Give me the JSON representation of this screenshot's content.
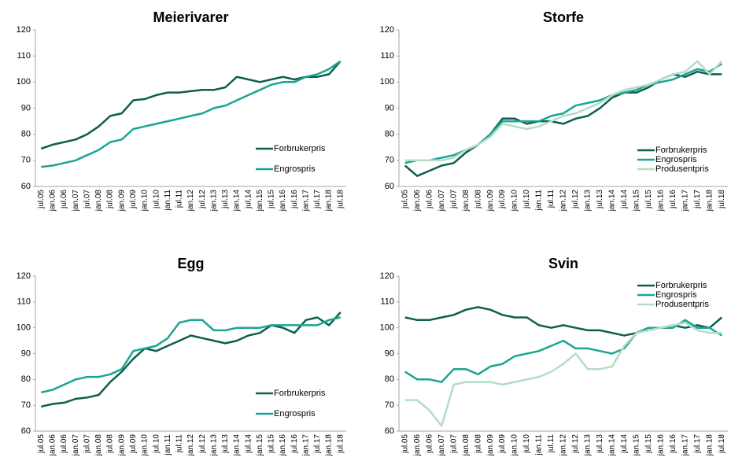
{
  "chart_data": [
    {
      "type": "line",
      "title": "Meierivarer",
      "legend": "lower right",
      "categories": [
        "jul.05",
        "jan.06",
        "jul.06",
        "jan.07",
        "jul.07",
        "jan.08",
        "jul.08",
        "jan.09",
        "jul.09",
        "jan.10",
        "jul.10",
        "jan.11",
        "jul.11",
        "jan.12",
        "jul.12",
        "jan.13",
        "jul.13",
        "jan.14",
        "jul.14",
        "jan.15",
        "jul.15",
        "jan.16",
        "jul.16",
        "jan.17",
        "jul.17",
        "jan.18",
        "jul.18"
      ],
      "ylim": [
        60,
        120
      ],
      "yticks": [
        60,
        70,
        80,
        90,
        100,
        110,
        120
      ],
      "grid": false,
      "series": [
        {
          "name": "Forbrukerpris",
          "color": "#0e5e4e",
          "values": [
            74.5,
            76,
            77,
            78,
            80,
            83,
            87,
            88,
            93,
            93.5,
            95,
            96,
            96,
            96.5,
            97,
            97,
            98,
            102,
            101,
            100,
            101,
            102,
            101,
            102,
            102,
            103,
            108
          ]
        },
        {
          "name": "Engrospris",
          "color": "#1aa593",
          "values": [
            67.5,
            68,
            69,
            70,
            72,
            74,
            77,
            78,
            82,
            83,
            84,
            85,
            86,
            87,
            88,
            90,
            91,
            93,
            95,
            97,
            99,
            100,
            100,
            102,
            103,
            105,
            108
          ]
        }
      ]
    },
    {
      "type": "line",
      "title": "Storfe",
      "legend": "lower right",
      "categories": [
        "jul.05",
        "jan.06",
        "jul.06",
        "jan.07",
        "jul.07",
        "jan.08",
        "jul.08",
        "jan.09",
        "jul.09",
        "jan.10",
        "jul.10",
        "jan.11",
        "jul.11",
        "jan.12",
        "jul.12",
        "jan.13",
        "jul.13",
        "jan.14",
        "jul.14",
        "jan.15",
        "jul.15",
        "jan.16",
        "jul.16",
        "jan.17",
        "jul.17",
        "jan.18",
        "jul.18"
      ],
      "ylim": [
        60,
        120
      ],
      "yticks": [
        60,
        70,
        80,
        90,
        100,
        110,
        120
      ],
      "grid": false,
      "series": [
        {
          "name": "Forbrukerpris",
          "color": "#0e5e4e",
          "values": [
            68,
            64,
            66,
            68,
            69,
            73,
            76,
            80,
            86,
            86,
            84,
            85,
            85,
            84,
            86,
            87,
            90,
            94,
            96,
            96,
            98,
            101,
            103,
            102,
            104,
            103,
            103
          ]
        },
        {
          "name": "Engrospris",
          "color": "#1aa593",
          "values": [
            69,
            70,
            70,
            71,
            72,
            74,
            76,
            80,
            85,
            85,
            85,
            85,
            87,
            88,
            91,
            92,
            93,
            95,
            96,
            97,
            99,
            100,
            101,
            103,
            105,
            104,
            107
          ]
        },
        {
          "name": "Produsentpris",
          "color": "#b4dcc9",
          "values": [
            70,
            70,
            70,
            70,
            71,
            74,
            76,
            79,
            84,
            83,
            82,
            83,
            85,
            87,
            88,
            90,
            92,
            95,
            97,
            98,
            99,
            101,
            103,
            104,
            108,
            103,
            108
          ]
        }
      ]
    },
    {
      "type": "line",
      "title": "Egg",
      "legend": "lower right",
      "categories": [
        "jul.05",
        "jan.06",
        "jul.06",
        "jan.07",
        "jul.07",
        "jan.08",
        "jul.08",
        "jan.09",
        "jul.09",
        "jan.10",
        "jul.10",
        "jan.11",
        "jul.11",
        "jan.12",
        "jul.12",
        "jan.13",
        "jul.13",
        "jan.14",
        "jul.14",
        "jan.15",
        "jul.15",
        "jan.16",
        "jul.16",
        "jan.17",
        "jul.17",
        "jan.18",
        "jul.18"
      ],
      "ylim": [
        60,
        120
      ],
      "yticks": [
        60,
        70,
        80,
        90,
        100,
        110,
        120
      ],
      "grid": false,
      "series": [
        {
          "name": "Forbrukerpris",
          "color": "#0e5e4e",
          "values": [
            69.5,
            70.5,
            71,
            72.5,
            73,
            74,
            79,
            83,
            88,
            92,
            91,
            93,
            95,
            97,
            96,
            95,
            94,
            95,
            97,
            98,
            101,
            100,
            98,
            103,
            104,
            101,
            106
          ]
        },
        {
          "name": "Engrospris",
          "color": "#1aa593",
          "values": [
            75,
            76,
            78,
            80,
            81,
            81,
            82,
            84,
            91,
            92,
            93,
            96,
            102,
            103,
            103,
            99,
            99,
            100,
            100,
            100,
            101,
            101,
            101,
            101,
            101,
            103,
            104
          ]
        }
      ]
    },
    {
      "type": "line",
      "title": "Svin",
      "legend": "upper right",
      "categories": [
        "jul.05",
        "jan.06",
        "jul.06",
        "jan.07",
        "jul.07",
        "jan.08",
        "jul.08",
        "jan.09",
        "jul.09",
        "jan.10",
        "jul.10",
        "jan.11",
        "jul.11",
        "jan.12",
        "jul.12",
        "jan.13",
        "jul.13",
        "jan.14",
        "jul.14",
        "jan.15",
        "jul.15",
        "jan.16",
        "jul.16",
        "jan.17",
        "jul.17",
        "jan.18",
        "jul.18"
      ],
      "ylim": [
        60,
        120
      ],
      "yticks": [
        60,
        70,
        80,
        90,
        100,
        110,
        120
      ],
      "grid": false,
      "series": [
        {
          "name": "Forbrukerpris",
          "color": "#0e5e4e",
          "values": [
            104,
            103,
            103,
            104,
            105,
            107,
            108,
            107,
            105,
            104,
            104,
            101,
            100,
            101,
            100,
            99,
            99,
            98,
            97,
            98,
            100,
            100,
            101,
            100,
            101,
            100,
            104
          ]
        },
        {
          "name": "Engrospris",
          "color": "#1aa593",
          "values": [
            83,
            80,
            80,
            79,
            84,
            84,
            82,
            85,
            86,
            89,
            90,
            91,
            93,
            95,
            92,
            92,
            91,
            90,
            92,
            98,
            100,
            100,
            100,
            103,
            100,
            100,
            97
          ]
        },
        {
          "name": "Produsentpris",
          "color": "#b4dcc9",
          "values": [
            72,
            72,
            68,
            62,
            78,
            79,
            79,
            79,
            78,
            79,
            80,
            81,
            83,
            86,
            90,
            84,
            84,
            85,
            93,
            98,
            99,
            100,
            101,
            102,
            99,
            98,
            98
          ]
        }
      ]
    }
  ]
}
